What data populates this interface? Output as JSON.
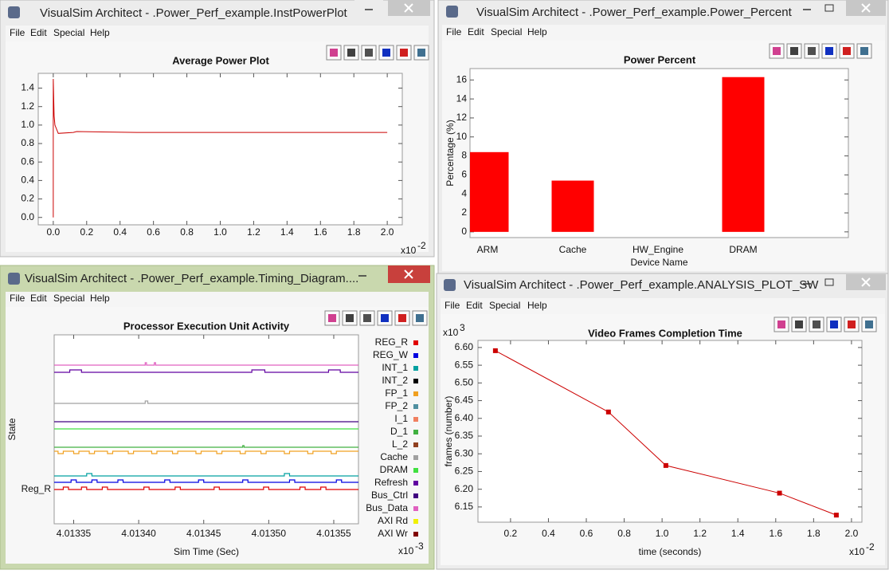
{
  "windows": [
    {
      "title": "VisualSim Architect - .Power_Perf_example.InstPowerPlot",
      "menu": [
        "File",
        "Edit",
        "Special",
        "Help"
      ]
    },
    {
      "title": "VisualSim Architect - .Power_Perf_example.Power_Percent",
      "menu": [
        "File",
        "Edit",
        "Special",
        "Help"
      ]
    },
    {
      "title": "VisualSim Architect - .Power_Perf_example.Timing_Diagram....",
      "menu": [
        "File",
        "Edit",
        "Special",
        "Help"
      ]
    },
    {
      "title": "VisualSim Architect - .Power_Perf_example.ANALYSIS_PLOT_SW",
      "menu": [
        "File",
        "Edit",
        "Special",
        "Help"
      ]
    }
  ],
  "chart_data": [
    {
      "type": "line",
      "title": "Average Power Plot",
      "x": [
        0,
        0,
        0.005,
        0.01,
        0.03,
        0.12,
        0.14,
        0.5,
        1.0,
        1.5,
        2.0
      ],
      "values": [
        0,
        1.5,
        1.1,
        1.0,
        0.91,
        0.92,
        0.93,
        0.92,
        0.92,
        0.92,
        0.92
      ],
      "color": "#cc0000",
      "xlim": [
        -0.09,
        2.09
      ],
      "xticks": [
        {
          "value": 0,
          "label": "0.0"
        },
        0.2,
        0.4,
        0.6,
        0.8,
        {
          "value": 1,
          "label": "1.0"
        },
        1.2,
        1.4,
        1.6,
        1.8,
        {
          "value": 2,
          "label": "2.0"
        }
      ],
      "x_multiplier": "x10",
      "x_exponent": "-2",
      "ylim": [
        -0.08,
        1.56
      ],
      "yticks": [
        {
          "value": 0,
          "label": "0.0"
        },
        0.2,
        0.4,
        0.6,
        0.8,
        {
          "value": 1,
          "label": "1.0"
        },
        1.2,
        1.4
      ]
    },
    {
      "type": "bar",
      "title": "Power Percent",
      "xlabel": "Device Name",
      "ylabel": "Percentage (%)",
      "categories": [
        "ARM",
        "Cache",
        "HW_Engine",
        "DRAM"
      ],
      "values": [
        8.4,
        5.4,
        0,
        16.3
      ],
      "color": "#ff0000",
      "ylim": [
        -0.6,
        17.2
      ],
      "yticks": [
        0,
        2,
        4,
        6,
        8,
        10,
        12,
        14,
        16
      ]
    },
    {
      "type": "step",
      "title": "Processor Execution Unit Activity",
      "xlabel": "Sim Time (Sec)",
      "ylabel": "State",
      "xlim": [
        4.013335,
        4.013569
      ],
      "xticks": [
        4.01335,
        {
          "value": 4.0134,
          "label": "4.01340"
        },
        4.01345,
        {
          "value": 4.0135,
          "label": "4.01350"
        },
        4.01355
      ],
      "x_multiplier": "x10",
      "x_exponent": "-3",
      "ylim": [
        -4.3,
        19.4
      ],
      "yticks": [
        {
          "value": 0,
          "label": "Reg_R"
        }
      ],
      "series": [
        {
          "name": "REG_R",
          "color": "#e00000",
          "x": [
            4.013335,
            4.013342,
            4.013346,
            4.013356,
            4.01336,
            4.013372,
            4.013376,
            4.013404,
            4.013408,
            4.013428,
            4.013432,
            4.013458,
            4.013462,
            4.013496,
            4.0135,
            4.013524,
            4.013528,
            4.01354,
            4.013544
          ],
          "values": [
            0,
            0.3,
            0,
            0.3,
            0,
            0.3,
            0,
            0.3,
            0,
            0.3,
            0,
            0.3,
            0,
            0.3,
            0,
            0.3,
            0,
            0.3,
            0
          ]
        },
        {
          "name": "REG_W",
          "color": "#0000e0",
          "x": [
            4.013335,
            4.013348,
            4.013352,
            4.013364,
            4.013368,
            4.013384,
            4.013388,
            4.01342,
            4.013424,
            4.013446,
            4.01345,
            4.01348,
            4.013484,
            4.013516,
            4.01352,
            4.013552,
            4.013556
          ],
          "values": [
            0.9,
            1.2,
            0.9,
            1.2,
            0.9,
            1.2,
            0.9,
            1.2,
            0.9,
            1.2,
            0.9,
            1.2,
            0.9,
            1.2,
            0.9,
            1.2,
            0.9
          ]
        },
        {
          "name": "INT_1",
          "color": "#00a0a0",
          "x": [
            4.013335,
            4.01336,
            4.013364,
            4.013512,
            4.013516
          ],
          "values": [
            1.7,
            2.0,
            1.7,
            2.0,
            1.7
          ]
        },
        {
          "name": "INT_2",
          "color": "#000000"
        },
        {
          "name": "FP_1",
          "color": "#f0a020",
          "x": [
            4.013335,
            4.013338,
            4.013342,
            4.01335,
            4.013354,
            4.013362,
            4.013366,
            4.013376,
            4.01338,
            4.013392,
            4.013396,
            4.01341,
            4.013414,
            4.013426,
            4.01343,
            4.013444,
            4.013448,
            4.01346,
            4.013464,
            4.013478,
            4.013482,
            4.013494,
            4.013498,
            4.013512,
            4.013516,
            4.01353,
            4.013534,
            4.013548,
            4.013552
          ],
          "values": [
            4.8,
            4.5,
            4.8,
            4.5,
            4.8,
            4.5,
            4.8,
            4.5,
            4.8,
            4.5,
            4.8,
            4.5,
            4.8,
            4.5,
            4.8,
            4.5,
            4.8,
            4.5,
            4.8,
            4.5,
            4.8,
            4.5,
            4.8,
            4.5,
            4.8,
            4.5,
            4.8,
            4.5,
            4.8
          ]
        },
        {
          "name": "FP_2",
          "color": "#5090a0"
        },
        {
          "name": "I_1",
          "color": "#f08060"
        },
        {
          "name": "D_1",
          "color": "#40b040",
          "x": [
            4.013335,
            4.01348,
            4.013481
          ],
          "values": [
            5.3,
            5.5,
            5.3
          ]
        },
        {
          "name": "L_2",
          "color": "#904020"
        },
        {
          "name": "Cache",
          "color": "#a0a0a0",
          "x": [
            4.013335,
            4.013405,
            4.013407
          ],
          "values": [
            10.8,
            11.1,
            10.8
          ]
        },
        {
          "name": "DRAM",
          "color": "#40e040",
          "x": [
            4.013335
          ],
          "values": [
            7.6
          ]
        },
        {
          "name": "Refresh",
          "color": "#6000a0",
          "x": [
            4.013335,
            4.013347,
            4.013356,
            4.013487,
            4.013497,
            4.013546,
            4.013555
          ],
          "values": [
            14.7,
            15,
            14.7,
            15,
            14.7,
            15,
            14.7
          ]
        },
        {
          "name": "Bus_Ctrl",
          "color": "#400080",
          "x": [
            4.013335
          ],
          "values": [
            8.5
          ]
        },
        {
          "name": "Bus_Data",
          "color": "#e060c0",
          "x": [
            4.013335,
            4.013405,
            4.013406,
            4.013412,
            4.013413
          ],
          "values": [
            15.6,
            15.9,
            15.6,
            15.9,
            15.6
          ]
        },
        {
          "name": "AXI Rd",
          "color": "#f0f000"
        },
        {
          "name": "AXI Wr",
          "color": "#800000"
        }
      ]
    },
    {
      "type": "line",
      "title": "Video Frames Completion Time",
      "xlabel": "time (seconds)",
      "ylabel": "frames (number)",
      "x": [
        0.12,
        0.717,
        1.02,
        1.62,
        1.92
      ],
      "values": [
        6.591,
        6.418,
        6.267,
        6.189,
        6.127
      ],
      "color": "#cc0000",
      "marker": "square",
      "xlim": [
        0.028,
        2.055
      ],
      "xticks": [
        0.2,
        0.4,
        0.6,
        0.8,
        {
          "value": 1,
          "label": "1.0"
        },
        1.2,
        1.4,
        1.6,
        1.8,
        {
          "value": 2,
          "label": "2.0"
        }
      ],
      "x_multiplier": "x10",
      "x_exponent": "-2",
      "ylim": [
        6.107,
        6.62
      ],
      "yticks": [
        6.15,
        {
          "value": 6.2,
          "label": "6.20"
        },
        6.25,
        {
          "value": 6.3,
          "label": "6.30"
        },
        6.35,
        {
          "value": 6.4,
          "label": "6.40"
        },
        6.45,
        {
          "value": 6.5,
          "label": "6.50"
        },
        6.55,
        {
          "value": 6.6,
          "label": "6.60"
        }
      ],
      "y_multiplier": "x10",
      "y_exponent": "3"
    }
  ]
}
